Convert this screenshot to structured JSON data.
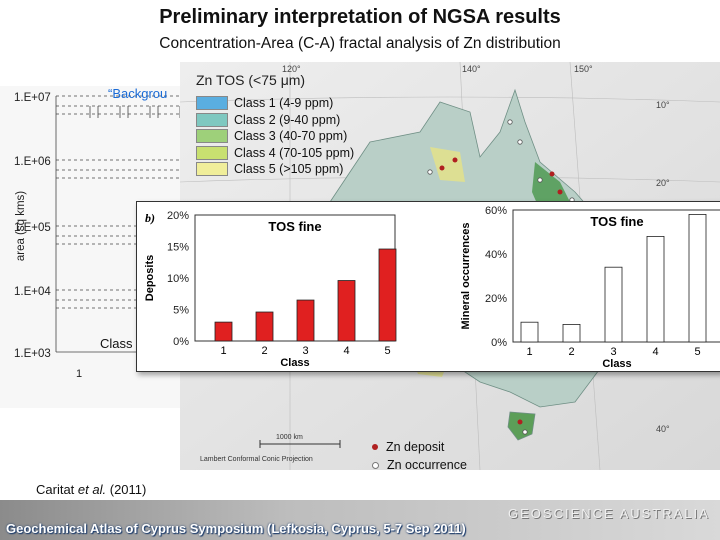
{
  "title": "Preliminary interpretation of NGSA results",
  "subtitle": "Concentration-Area (C-A) fractal analysis of Zn distribution",
  "ca_plot": {
    "background_label": "“Backgrou",
    "y_ticks": [
      "1.E+07",
      "1.E+06",
      "1.E+05",
      "1.E+04",
      "1.E+03"
    ],
    "y_label": "area (sq kms)",
    "x_tick": "1",
    "class_label": "Class"
  },
  "map": {
    "legend_title": "Zn TOS (<75 μm)",
    "legend": [
      {
        "label": "Class 1 (4-9 ppm)",
        "color": "#5aaee0"
      },
      {
        "label": "Class 2 (9-40 ppm)",
        "color": "#7fc8c0"
      },
      {
        "label": "Class 3 (40-70 ppm)",
        "color": "#9ed07a"
      },
      {
        "label": "Class 4 (70-105 ppm)",
        "color": "#c8e070"
      },
      {
        "label": "Class 5 (>105 ppm)",
        "color": "#f0ee9a"
      }
    ],
    "lon_ticks": [
      "120°",
      "140°",
      "150°"
    ],
    "lat_ticks": [
      "10°",
      "20°",
      "40°"
    ],
    "scale_label": "1000 km",
    "projection_label": "Lambert Conformal Conic Projection",
    "deposit_legend": [
      {
        "label": "Zn deposit",
        "color": "#b02020"
      },
      {
        "label": "Zn occurrence",
        "color": "#999999"
      }
    ]
  },
  "chart_data": [
    {
      "type": "bar",
      "panel_label": "b)",
      "title": "TOS fine",
      "xlabel": "Class",
      "ylabel": "Deposits",
      "categories": [
        "1",
        "2",
        "3",
        "4",
        "5"
      ],
      "values": [
        3,
        4.6,
        6.5,
        9.6,
        14.6
      ],
      "y_ticks": [
        "20%",
        "15%",
        "10%",
        "5%",
        "0%"
      ],
      "ylim": [
        0,
        20
      ],
      "color": "#e02020"
    },
    {
      "type": "bar",
      "title": "TOS fine",
      "xlabel": "Class",
      "ylabel": "Mineral occurrences",
      "categories": [
        "1",
        "2",
        "3",
        "4",
        "5"
      ],
      "values": [
        9,
        8,
        34,
        48,
        58
      ],
      "y_ticks": [
        "60%",
        "40%",
        "20%",
        "0%"
      ],
      "ylim": [
        0,
        60
      ],
      "color": "#ffffff"
    }
  ],
  "citation": {
    "author": "Caritat",
    "etal": "et al.",
    "year": "(2011)"
  },
  "footer": {
    "text": "Geochemical Atlas of Cyprus Symposium (Lefkosia, Cyprus, 5-7 Sep 2011)",
    "logo": "GEOSCIENCE AUSTRALIA"
  }
}
